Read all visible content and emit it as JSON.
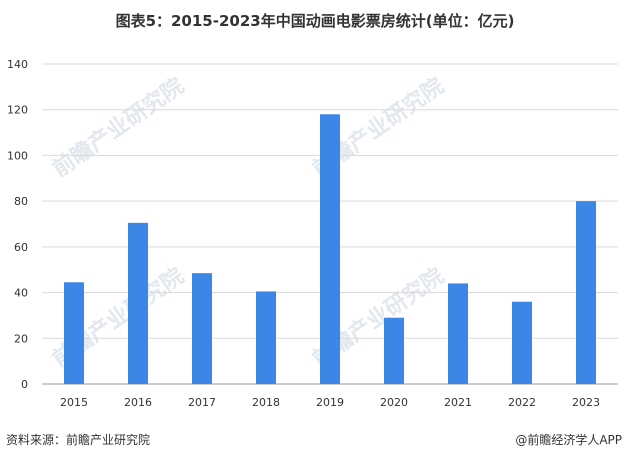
{
  "title": "图表5：2015-2023年中国动画电影票房统计(单位：亿元)",
  "source": "资料来源：前瞻产业研究院",
  "brand": "@前瞻经济学人APP",
  "watermark_text": "前瞻产业研究院",
  "colors": {
    "bar": "#3b86e6",
    "grid": "#d9d9d9",
    "axis": "#999999",
    "text": "#333333"
  },
  "chart_data": {
    "type": "bar",
    "title": "图表5：2015-2023年中国动画电影票房统计(单位：亿元)",
    "xlabel": "",
    "ylabel": "",
    "categories": [
      "2015",
      "2016",
      "2017",
      "2018",
      "2019",
      "2020",
      "2021",
      "2022",
      "2023"
    ],
    "values": [
      44.5,
      70.5,
      48.5,
      40.5,
      118,
      29,
      44,
      36,
      80
    ],
    "ylim": [
      0,
      140
    ],
    "yticks": [
      0,
      20,
      40,
      60,
      80,
      100,
      120,
      140
    ],
    "grid": true,
    "legend": "none"
  }
}
